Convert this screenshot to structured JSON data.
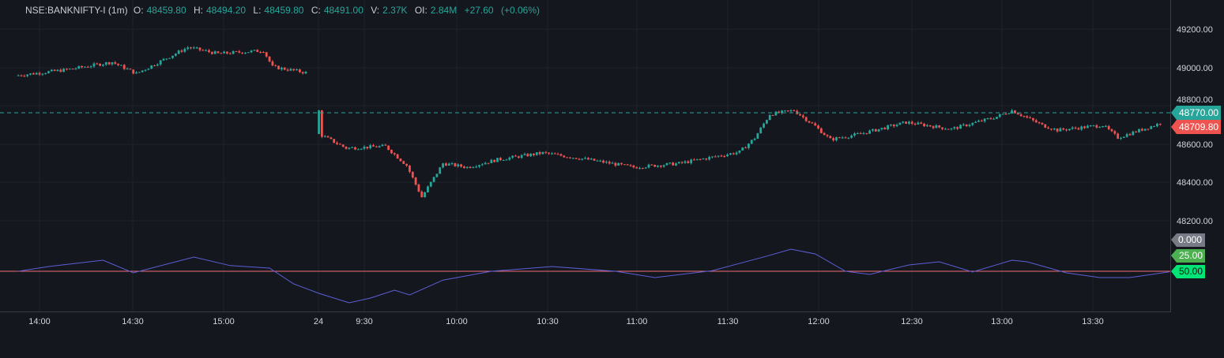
{
  "header": {
    "symbol": "NSE:BANKNIFTY-I (1m)",
    "o_label": "O:",
    "o": "48459.80",
    "h_label": "H:",
    "h": "48494.20",
    "l_label": "L:",
    "l": "48459.80",
    "c_label": "C:",
    "c": "48491.00",
    "v_label": "V:",
    "v": "2.37K",
    "oi_label": "OI:",
    "oi": "2.84M",
    "change": "+27.60",
    "change_pct": "(+0.06%)"
  },
  "colors": {
    "up": "#26a69a",
    "down": "#ef5350",
    "oscillator": "#5b5fd6",
    "level_line": "#f06d79",
    "background": "#15171e"
  },
  "price_axis": {
    "ticks": [
      "49200.00",
      "49000.00",
      "48800.00",
      "48600.00",
      "48400.00",
      "48200.00"
    ]
  },
  "tags": {
    "prev_level": "48770.00",
    "last_price": "48709.80",
    "osc_0": "0.000",
    "osc_25": "25.00",
    "osc_50": "50.00"
  },
  "time_axis": {
    "ticks": [
      "14:00",
      "14:30",
      "15:00",
      "24",
      "9:30",
      "10:00",
      "10:30",
      "11:00",
      "11:30",
      "12:00",
      "12:30",
      "13:00",
      "13:30"
    ]
  },
  "chart_data": [
    {
      "type": "candlestick",
      "interval": "1m",
      "ylim": [
        48100,
        49300
      ],
      "key_closes": [
        {
          "day": 1,
          "t": "13:53",
          "p": 48959
        },
        {
          "day": 1,
          "t": "14:10",
          "p": 48990
        },
        {
          "day": 1,
          "t": "14:25",
          "p": 49030
        },
        {
          "day": 1,
          "t": "14:33",
          "p": 48970
        },
        {
          "day": 1,
          "t": "14:50",
          "p": 49107
        },
        {
          "day": 1,
          "t": "15:00",
          "p": 49074
        },
        {
          "day": 1,
          "t": "15:15",
          "p": 49090
        },
        {
          "day": 1,
          "t": "15:18",
          "p": 49005
        },
        {
          "day": 1,
          "t": "15:29",
          "p": 48975
        },
        {
          "day": 2,
          "t": "9:15",
          "p": 48777
        },
        {
          "day": 2,
          "t": "9:16",
          "p": 48654
        },
        {
          "day": 2,
          "t": "9:25",
          "p": 48580
        },
        {
          "day": 2,
          "t": "9:38",
          "p": 48590
        },
        {
          "day": 2,
          "t": "9:45",
          "p": 48490
        },
        {
          "day": 2,
          "t": "9:50",
          "p": 48324
        },
        {
          "day": 2,
          "t": "9:57",
          "p": 48500
        },
        {
          "day": 2,
          "t": "10:05",
          "p": 48480
        },
        {
          "day": 2,
          "t": "10:15",
          "p": 48520
        },
        {
          "day": 2,
          "t": "10:30",
          "p": 48555
        },
        {
          "day": 2,
          "t": "10:45",
          "p": 48520
        },
        {
          "day": 2,
          "t": "11:00",
          "p": 48480
        },
        {
          "day": 2,
          "t": "11:15",
          "p": 48500
        },
        {
          "day": 2,
          "t": "11:35",
          "p": 48560
        },
        {
          "day": 2,
          "t": "11:40",
          "p": 48633
        },
        {
          "day": 2,
          "t": "11:45",
          "p": 48757
        },
        {
          "day": 2,
          "t": "11:53",
          "p": 48777
        },
        {
          "day": 2,
          "t": "12:00",
          "p": 48695
        },
        {
          "day": 2,
          "t": "12:05",
          "p": 48625
        },
        {
          "day": 2,
          "t": "12:15",
          "p": 48655
        },
        {
          "day": 2,
          "t": "12:30",
          "p": 48715
        },
        {
          "day": 2,
          "t": "12:45",
          "p": 48680
        },
        {
          "day": 2,
          "t": "13:00",
          "p": 48744
        },
        {
          "day": 2,
          "t": "13:05",
          "p": 48777
        },
        {
          "day": 2,
          "t": "13:15",
          "p": 48700
        },
        {
          "day": 2,
          "t": "13:20",
          "p": 48674
        },
        {
          "day": 2,
          "t": "13:35",
          "p": 48700
        },
        {
          "day": 2,
          "t": "13:40",
          "p": 48635
        },
        {
          "day": 2,
          "t": "13:54",
          "p": 48709.8
        }
      ]
    },
    {
      "type": "line",
      "levels": [
        0,
        25,
        50
      ],
      "points": [
        {
          "day": 1,
          "t": "13:53",
          "v": 50
        },
        {
          "day": 1,
          "t": "14:03",
          "v": 42.5
        },
        {
          "day": 1,
          "t": "14:21",
          "v": 32.5
        },
        {
          "day": 1,
          "t": "14:31",
          "v": 52.5
        },
        {
          "day": 1,
          "t": "14:51",
          "v": 27.5
        },
        {
          "day": 1,
          "t": "15:03",
          "v": 41
        },
        {
          "day": 1,
          "t": "15:16",
          "v": 45
        },
        {
          "day": 1,
          "t": "15:24",
          "v": 70
        },
        {
          "day": 2,
          "t": "9:15",
          "v": 85
        },
        {
          "day": 2,
          "t": "9:25",
          "v": 100
        },
        {
          "day": 2,
          "t": "9:32",
          "v": 92.5
        },
        {
          "day": 2,
          "t": "9:40",
          "v": 80
        },
        {
          "day": 2,
          "t": "9:45",
          "v": 87.5
        },
        {
          "day": 2,
          "t": "9:56",
          "v": 64
        },
        {
          "day": 2,
          "t": "10:12",
          "v": 50
        },
        {
          "day": 2,
          "t": "10:32",
          "v": 42.5
        },
        {
          "day": 2,
          "t": "10:53",
          "v": 50
        },
        {
          "day": 2,
          "t": "11:06",
          "v": 60
        },
        {
          "day": 2,
          "t": "11:25",
          "v": 49
        },
        {
          "day": 2,
          "t": "11:43",
          "v": 26
        },
        {
          "day": 2,
          "t": "11:51",
          "v": 15
        },
        {
          "day": 2,
          "t": "11:59",
          "v": 22.5
        },
        {
          "day": 2,
          "t": "12:09",
          "v": 50
        },
        {
          "day": 2,
          "t": "12:17",
          "v": 55
        },
        {
          "day": 2,
          "t": "12:30",
          "v": 40
        },
        {
          "day": 2,
          "t": "12:40",
          "v": 35
        },
        {
          "day": 2,
          "t": "12:51",
          "v": 51
        },
        {
          "day": 2,
          "t": "13:04",
          "v": 32.5
        },
        {
          "day": 2,
          "t": "13:09",
          "v": 35
        },
        {
          "day": 2,
          "t": "13:22",
          "v": 52.5
        },
        {
          "day": 2,
          "t": "13:33",
          "v": 60
        },
        {
          "day": 2,
          "t": "13:43",
          "v": 60
        },
        {
          "day": 2,
          "t": "13:56",
          "v": 51
        }
      ]
    }
  ]
}
